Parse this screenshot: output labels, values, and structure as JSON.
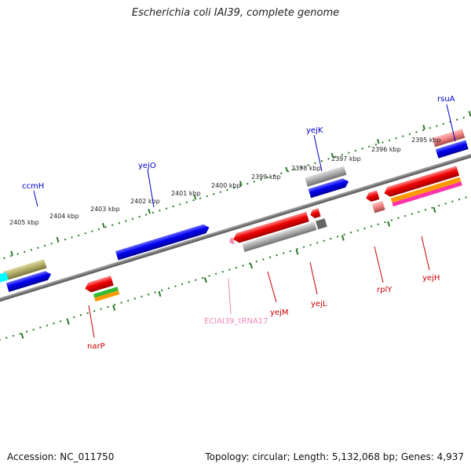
{
  "title": "Escherichia coli IAI39, complete genome",
  "footer": {
    "accession": "Accession: NC_011750",
    "summary": "Topology: circular; Length: 5,132,068 bp; Genes: 4,937"
  },
  "scale_labels": [
    "2405 kbp",
    "2404 kbp",
    "2403 kbp",
    "2402 kbp",
    "2401 kbp",
    "2400 kbp",
    "2399 kbp",
    "2398 kbp",
    "2397 kbp",
    "2396 kbp",
    "2395 kbp"
  ],
  "gene_labels_top": [
    "ccmH",
    "yejO",
    "yejK",
    "rsuA"
  ],
  "gene_labels_bottom": [
    "narP",
    "EClAI39_tRNA17",
    "yejM",
    "yejL",
    "rplY",
    "yejH"
  ],
  "colors": {
    "cds": "#0000ff",
    "gene_red": "#ff0000",
    "grey": "#a8a8a8",
    "olive": "#b5b06a",
    "cyan": "#00ffff",
    "green": "#33bb33",
    "orange": "#ff9900",
    "pink": "#ff66aa",
    "rrna_pink": "#f090b0",
    "label_blue": "#0000cc",
    "label_red": "#cc0000",
    "label_pink": "#ee88bb",
    "tick_green": "#2a7a2a"
  }
}
